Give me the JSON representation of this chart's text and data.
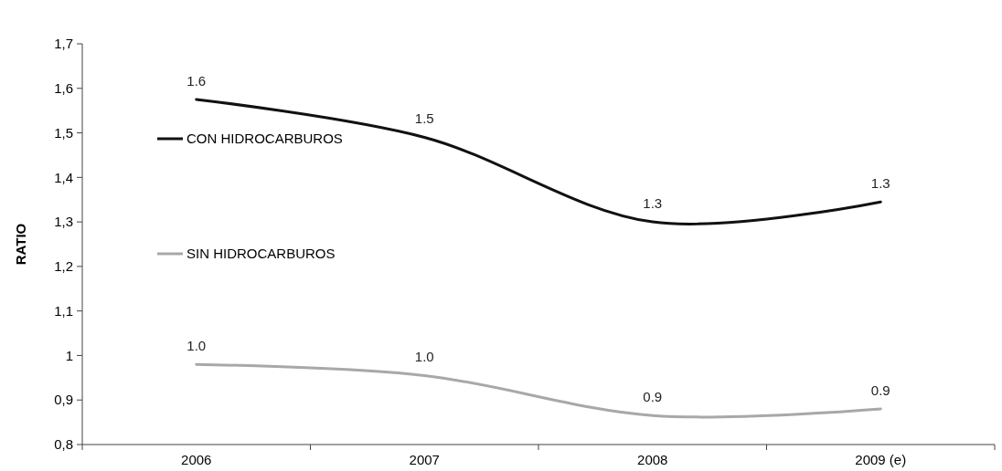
{
  "chart_data": {
    "type": "line",
    "ylabel": "RATIO",
    "categories": [
      "2006",
      "2007",
      "2008",
      "2009 (e)"
    ],
    "series": [
      {
        "name": "CON HIDROCARBUROS",
        "color": "#111111",
        "values": [
          1.575,
          1.49,
          1.3,
          1.345
        ],
        "value_labels": [
          "1.6",
          "1.5",
          "1.3",
          "1.3"
        ]
      },
      {
        "name": "SIN HIDROCARBUROS",
        "color": "#a8a8a8",
        "values": [
          0.98,
          0.955,
          0.865,
          0.88
        ],
        "value_labels": [
          "1.0",
          "1.0",
          "0.9",
          "0.9"
        ]
      }
    ],
    "ylim": [
      0.8,
      1.7
    ],
    "yticks": [
      {
        "value": 0.8,
        "label": "0,8"
      },
      {
        "value": 0.9,
        "label": "0,9"
      },
      {
        "value": 1,
        "label": "1"
      },
      {
        "value": 1.1,
        "label": "1,1"
      },
      {
        "value": 1.2,
        "label": "1,2"
      },
      {
        "value": 1.3,
        "label": "1,3"
      },
      {
        "value": 1.4,
        "label": "1,4"
      },
      {
        "value": 1.5,
        "label": "1,5"
      },
      {
        "value": 1.6,
        "label": "1,6"
      },
      {
        "value": 1.7,
        "label": "1,7"
      }
    ],
    "grid": false,
    "legend": "left",
    "marker": "none",
    "line_style": "solid"
  }
}
